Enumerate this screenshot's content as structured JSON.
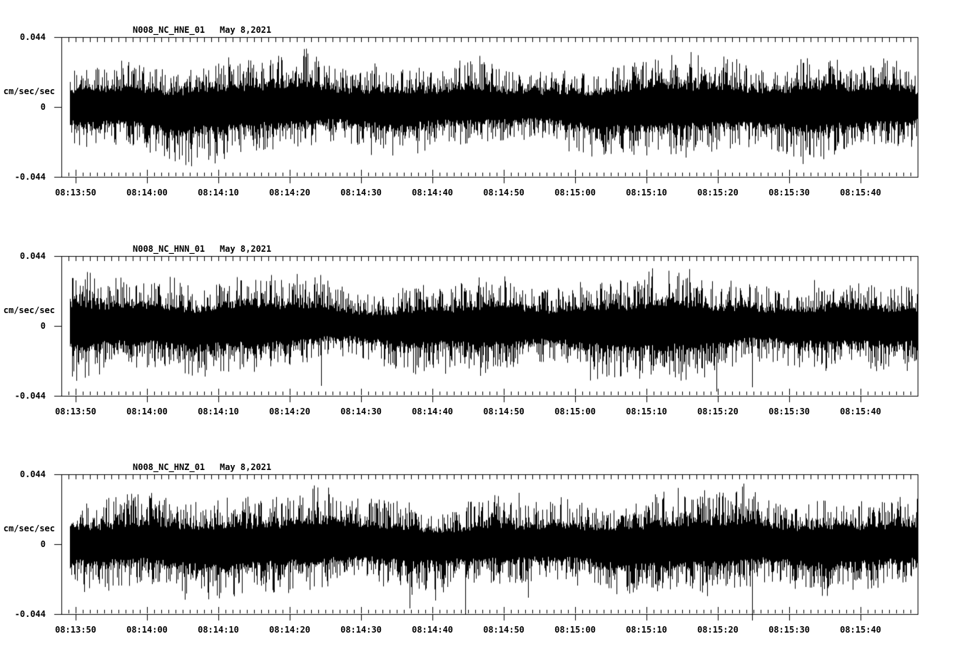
{
  "figure": {
    "kind": "seismogram-strip-chart",
    "background": "#ffffff",
    "ink": "#000000",
    "panel_count": 3
  },
  "chart_data": [
    {
      "type": "line",
      "title_station": "N008_NC_HNE_01",
      "title_date": "May 8,2021",
      "ylabel": "cm/sec/sec",
      "ylim": [
        -0.044,
        0.044
      ],
      "ytick_labels": [
        "0.044",
        "0",
        "-0.044"
      ],
      "x_window_start": "08:13:48",
      "x_window_end": "08:15:48",
      "x_major_tick_s": 10,
      "x_minor_tick_s": 1,
      "x_tick_labels": [
        "08:13:50",
        "08:14:00",
        "08:14:10",
        "08:14:20",
        "08:14:30",
        "08:14:40",
        "08:14:50",
        "08:15:00",
        "08:15:10",
        "08:15:20",
        "08:15:30",
        "08:15:40"
      ],
      "grid": false,
      "legend": false,
      "trace": {
        "kind": "broadband-noise",
        "seed": 101,
        "start_offset_s": 1.2,
        "band_amp": 0.0135,
        "grass_amp": 0.016,
        "big_spikes": [
          {
            "t_s": 88.2,
            "amp": 0.0345
          },
          {
            "t_s": 13.2,
            "amp": -0.028
          },
          {
            "t_s": 49.9,
            "amp": -0.029
          }
        ]
      }
    },
    {
      "type": "line",
      "title_station": "N008_NC_HNN_01",
      "title_date": "May 8,2021",
      "ylabel": "cm/sec/sec",
      "ylim": [
        -0.044,
        0.044
      ],
      "ytick_labels": [
        "0.044",
        "0",
        "-0.044"
      ],
      "x_window_start": "08:13:48",
      "x_window_end": "08:15:48",
      "x_major_tick_s": 10,
      "x_minor_tick_s": 1,
      "x_tick_labels": [
        "08:13:50",
        "08:14:00",
        "08:14:10",
        "08:14:20",
        "08:14:30",
        "08:14:40",
        "08:14:50",
        "08:15:00",
        "08:15:10",
        "08:15:20",
        "08:15:30",
        "08:15:40"
      ],
      "grid": false,
      "legend": false,
      "trace": {
        "kind": "broadband-noise",
        "seed": 202,
        "start_offset_s": 1.2,
        "band_amp": 0.0138,
        "grass_amp": 0.0165,
        "big_spikes": [
          {
            "t_s": 36.4,
            "amp": -0.0375
          },
          {
            "t_s": 58.7,
            "amp": -0.0315
          },
          {
            "t_s": 91.8,
            "amp": -0.0415
          },
          {
            "t_s": 96.8,
            "amp": -0.0385
          }
        ]
      }
    },
    {
      "type": "line",
      "title_station": "N008_NC_HNZ_01",
      "title_date": "May 8,2021",
      "ylabel": "cm/sec/sec",
      "ylim": [
        -0.044,
        0.044
      ],
      "ytick_labels": [
        "0.044",
        "0",
        "-0.044"
      ],
      "x_window_start": "08:13:48",
      "x_window_end": "08:15:48",
      "x_major_tick_s": 10,
      "x_minor_tick_s": 1,
      "x_tick_labels": [
        "08:13:50",
        "08:14:00",
        "08:14:10",
        "08:14:20",
        "08:14:30",
        "08:14:40",
        "08:14:50",
        "08:15:00",
        "08:15:10",
        "08:15:20",
        "08:15:30",
        "08:15:40"
      ],
      "grid": false,
      "legend": false,
      "trace": {
        "kind": "broadband-noise",
        "seed": 303,
        "start_offset_s": 1.2,
        "band_amp": 0.014,
        "grass_amp": 0.017,
        "big_spikes": [
          {
            "t_s": 48.8,
            "amp": -0.0405
          },
          {
            "t_s": 52.4,
            "amp": -0.0355
          },
          {
            "t_s": 56.6,
            "amp": -0.0445
          },
          {
            "t_s": 64.1,
            "amp": 0.0325
          },
          {
            "t_s": 65.4,
            "amp": -0.0335
          },
          {
            "t_s": 96.8,
            "amp": -0.048
          }
        ]
      }
    }
  ]
}
